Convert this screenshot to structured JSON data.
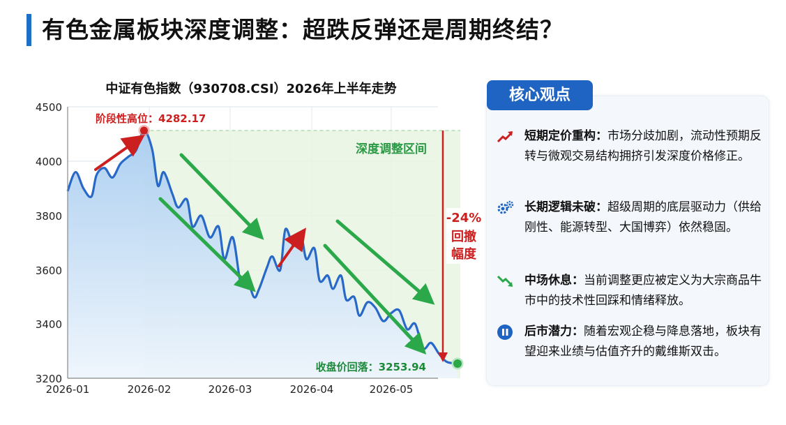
{
  "page": {
    "title": "有色金属板块深度调整：超跌反弹还是周期终结？"
  },
  "chart_data": {
    "type": "line",
    "title": "中证有色指数（930708.CSI）2026年上半年走势",
    "x_ticks": [
      "2026-01",
      "2026-02",
      "2026-03",
      "2026-04",
      "2026-05"
    ],
    "y_ticks": [
      3200,
      3400,
      3600,
      3800,
      4000,
      4500
    ],
    "ylim": [
      3200,
      4500
    ],
    "grid": true,
    "series": [
      {
        "x": [
          "2026-01-01",
          "2026-01-04",
          "2026-01-07",
          "2026-01-10",
          "2026-01-12",
          "2026-01-15",
          "2026-01-18",
          "2026-01-21",
          "2026-01-24",
          "2026-01-27",
          "2026-01-30",
          "2026-02-02",
          "2026-02-04",
          "2026-02-06",
          "2026-02-09",
          "2026-02-11",
          "2026-02-14",
          "2026-02-16",
          "2026-02-19",
          "2026-02-22",
          "2026-02-25",
          "2026-02-27",
          "2026-03-02",
          "2026-03-05",
          "2026-03-07",
          "2026-03-10",
          "2026-03-12",
          "2026-03-15",
          "2026-03-17",
          "2026-03-20",
          "2026-03-22",
          "2026-03-25",
          "2026-03-28",
          "2026-03-30",
          "2026-04-02",
          "2026-04-04",
          "2026-04-07",
          "2026-04-09",
          "2026-04-12",
          "2026-04-14",
          "2026-04-17",
          "2026-04-19",
          "2026-04-22",
          "2026-04-25",
          "2026-04-28",
          "2026-05-01",
          "2026-05-04",
          "2026-05-07",
          "2026-05-10",
          "2026-05-13",
          "2026-05-16",
          "2026-05-19",
          "2026-05-22",
          "2026-05-26"
        ],
        "values": [
          3890,
          3960,
          3900,
          3870,
          3950,
          3975,
          3940,
          3990,
          4040,
          4100,
          4282,
          4110,
          3910,
          3960,
          3880,
          3830,
          3860,
          3760,
          3800,
          3720,
          3760,
          3640,
          3720,
          3550,
          3580,
          3500,
          3530,
          3610,
          3650,
          3600,
          3750,
          3690,
          3720,
          3640,
          3680,
          3560,
          3580,
          3530,
          3580,
          3490,
          3500,
          3430,
          3480,
          3460,
          3410,
          3440,
          3450,
          3380,
          3400,
          3310,
          3330,
          3290,
          3260,
          3253.94
        ]
      }
    ],
    "annotations": {
      "high_label": "阶段性高位：4282.17",
      "zone_label": "深度调整区间",
      "drop_pct": "-24%",
      "drop_text_1": "回撤",
      "drop_text_2": "幅度",
      "close_label": "收盘价回落：3253.94"
    },
    "colors": {
      "line": "#2868c6",
      "fill": "#cfe2f6",
      "zone": "#e7f4e3",
      "red": "#cc1f1f",
      "green": "#2aa84a"
    }
  },
  "panel": {
    "title": "核心观点",
    "points": [
      {
        "icon": "trend-up-icon",
        "head": "短期定价重构：",
        "body": "市场分歧加剧，流动性预期反转与微观交易结构拥挤引发深度价格修正。"
      },
      {
        "icon": "gears-icon",
        "head": "长期逻辑未破：",
        "body": "超级周期的底层驱动力（供给刚性、能源转型、大国博弈）依然稳固。"
      },
      {
        "icon": "trend-down-icon",
        "head": "中场休息：",
        "body": "当前调整更应被定义为大宗商品牛市中的技术性回踩和情绪释放。"
      },
      {
        "icon": "pause-icon",
        "head": "后市潜力：",
        "body": "随着宏观企稳与降息落地，板块有望迎来业绩与估值齐升的戴维斯双击。"
      }
    ]
  }
}
